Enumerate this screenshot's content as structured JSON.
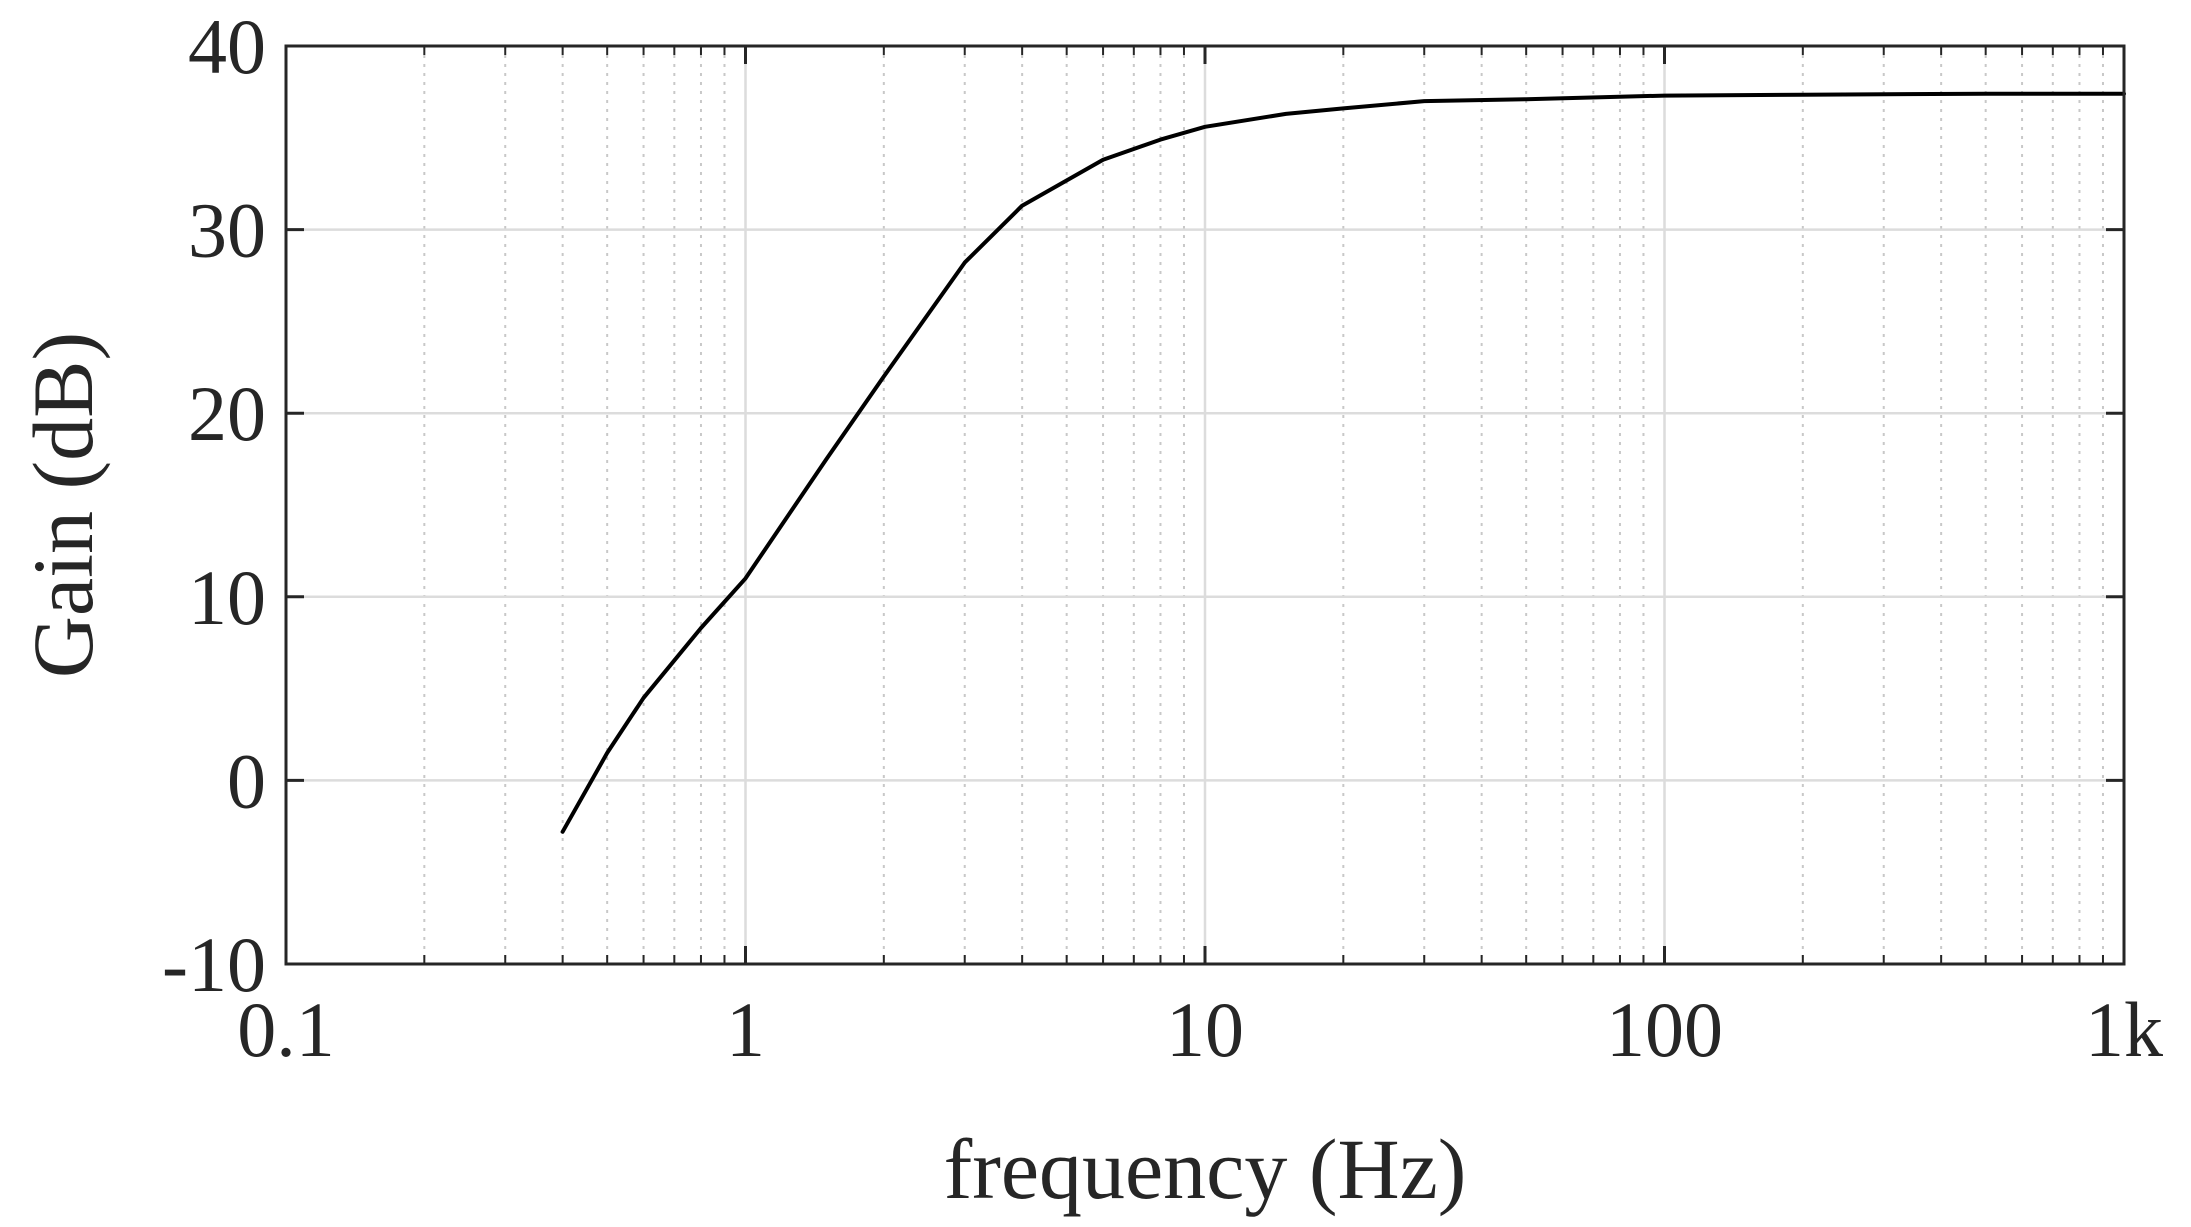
{
  "chart_data": {
    "type": "line",
    "title": "",
    "xlabel": "frequency (Hz)",
    "ylabel": "Gain (dB)",
    "x_scale": "log",
    "xlim": [
      0.1,
      1000
    ],
    "ylim": [
      -10,
      40
    ],
    "x_ticks": [
      0.1,
      1,
      10,
      100,
      1000
    ],
    "x_tick_labels": [
      "0.1",
      "1",
      "10",
      "100",
      "1k"
    ],
    "y_ticks": [
      -10,
      0,
      10,
      20,
      30,
      40
    ],
    "y_tick_labels": [
      "-10",
      "0",
      "10",
      "20",
      "30",
      "40"
    ],
    "grid": true,
    "minor_grid_x": true,
    "legend": "none",
    "colors": {
      "line": "#000000",
      "axes": "#262626",
      "major_grid": "#dcdcdc",
      "minor_grid": "#c8c8c8"
    },
    "series": [
      {
        "x": [
          0.4,
          0.5,
          0.6,
          0.8,
          1,
          1.5,
          2,
          3,
          4,
          6,
          8,
          10,
          15,
          20,
          30,
          50,
          100,
          200,
          500,
          1000
        ],
        "y": [
          -2.8,
          1.5,
          4.5,
          8.3,
          11.0,
          17.5,
          22.0,
          28.2,
          31.3,
          33.8,
          34.9,
          35.6,
          36.3,
          36.6,
          37.0,
          37.1,
          37.3,
          37.35,
          37.4,
          37.4
        ]
      }
    ]
  }
}
